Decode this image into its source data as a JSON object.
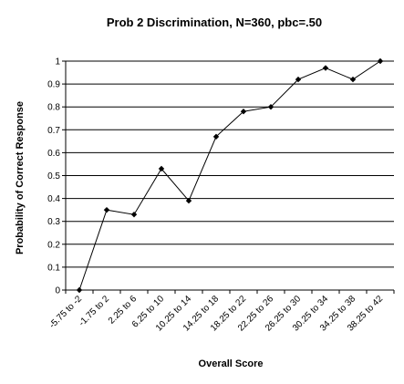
{
  "chart_data": {
    "type": "line",
    "title": "Prob 2 Discrimination, N=360, pbc=.50",
    "xlabel": "Overall Score",
    "ylabel": "Probability of Correct Response",
    "ylim": [
      0,
      1
    ],
    "yticks": [
      "0",
      "0.1",
      "0.2",
      "0.3",
      "0.4",
      "0.5",
      "0.6",
      "0.7",
      "0.8",
      "0.9",
      "1"
    ],
    "grid": "horizontal",
    "categories": [
      "-5.75 to -2",
      "-1.75 to 2",
      "2.25 to 6",
      "6.25 to 10",
      "10.25 to 14",
      "14.25 to 18",
      "18.25 to 22",
      "22.25 to 26",
      "26.25 to 30",
      "30.25 to 34",
      "34.25 to 38",
      "38.25 to 42"
    ],
    "values": [
      0.0,
      0.35,
      0.33,
      0.53,
      0.39,
      0.67,
      0.78,
      0.8,
      0.92,
      0.97,
      0.92,
      1.0
    ]
  }
}
